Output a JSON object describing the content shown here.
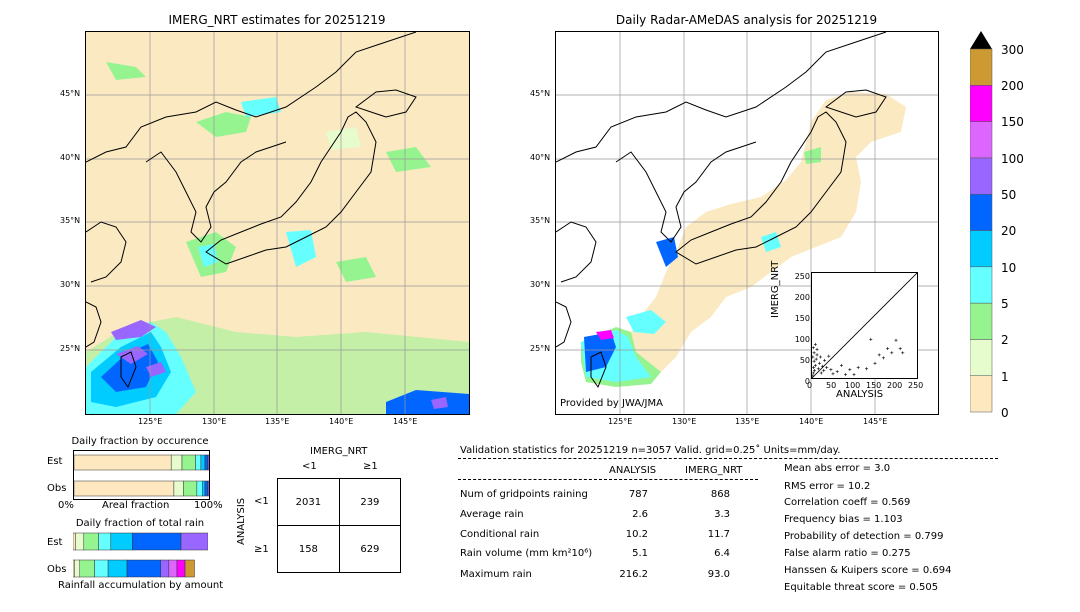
{
  "left_map": {
    "title": "IMERG_NRT estimates for 20251219",
    "lat_ticks": [
      "45°N",
      "40°N",
      "35°N",
      "30°N",
      "25°N"
    ],
    "lon_ticks": [
      "125°E",
      "130°E",
      "135°E",
      "140°E",
      "145°E"
    ]
  },
  "right_map": {
    "title": "Daily Radar-AMeDAS analysis for 20251219",
    "lat_ticks": [
      "45°N",
      "40°N",
      "35°N",
      "30°N",
      "25°N"
    ],
    "lon_ticks": [
      "125°E",
      "130°E",
      "135°E",
      "140°E",
      "145°E"
    ],
    "credit": "Provided by JWA/JMA"
  },
  "colorbar": {
    "labels": [
      "0",
      "1",
      "2",
      "5",
      "10",
      "20",
      "50",
      "100",
      "150",
      "200",
      "300"
    ],
    "colors": [
      "#fde8c0",
      "#e6fccc",
      "#96f490",
      "#66ffff",
      "#00ccff",
      "#0066ff",
      "#9966ff",
      "#dd66ff",
      "#ff00ff",
      "#cc9933"
    ]
  },
  "scatter": {
    "ylabel": "IMERG_NRT",
    "xlabel": "ANALYSIS",
    "ticks": [
      "0",
      "50",
      "100",
      "150",
      "200",
      "250"
    ]
  },
  "occurrence": {
    "title": "Daily fraction by occurence",
    "row_labels": [
      "Est",
      "Obs"
    ],
    "axis_left": "0%",
    "axis_mid": "Areal fraction",
    "axis_right": "100%"
  },
  "total_rain": {
    "title": "Daily fraction of total rain",
    "row_labels": [
      "Est",
      "Obs"
    ],
    "axis_label": "Rainfall accumulation by amount"
  },
  "contingency": {
    "col_title": "IMERG_NRT",
    "col_labels": [
      "<1",
      "≥1"
    ],
    "row_title": "ANALYSIS",
    "row_labels": [
      "<1",
      "≥1"
    ],
    "cells": [
      [
        "2031",
        "239"
      ],
      [
        "158",
        "629"
      ]
    ]
  },
  "validation": {
    "header": "Validation statistics for 20251219  n=3057 Valid. grid=0.25˚ Units=mm/day.",
    "col_analysis": "ANALYSIS",
    "col_imerg": "IMERG_NRT",
    "rows": [
      {
        "label": "Num of gridpoints raining",
        "analysis": "787",
        "imerg": "868"
      },
      {
        "label": "Average rain",
        "analysis": "2.6",
        "imerg": "3.3"
      },
      {
        "label": "Conditional rain",
        "analysis": "10.2",
        "imerg": "11.7"
      },
      {
        "label": "Rain volume (mm km²10⁶)",
        "analysis": "5.1",
        "imerg": "6.4"
      },
      {
        "label": "Maximum rain",
        "analysis": "216.2",
        "imerg": "93.0"
      }
    ],
    "scores": [
      "Mean abs error =    3.0",
      "RMS error =   10.2",
      "Correlation coeff =  0.569",
      "Frequency bias =  1.103",
      "Probability of detection =  0.799",
      "False alarm ratio =  0.275",
      "Hanssen & Kuipers score =  0.694",
      "Equitable threat score =  0.505"
    ]
  },
  "chart_data": [
    {
      "type": "scatter",
      "title": "",
      "xlabel": "ANALYSIS",
      "ylabel": "IMERG_NRT",
      "xlim": [
        0,
        250
      ],
      "ylim": [
        0,
        250
      ],
      "points": [
        [
          2,
          5
        ],
        [
          3,
          12
        ],
        [
          4,
          25
        ],
        [
          5,
          40
        ],
        [
          6,
          18
        ],
        [
          8,
          30
        ],
        [
          10,
          45
        ],
        [
          12,
          55
        ],
        [
          15,
          22
        ],
        [
          18,
          35
        ],
        [
          20,
          50
        ],
        [
          22,
          12
        ],
        [
          25,
          28
        ],
        [
          28,
          18
        ],
        [
          30,
          42
        ],
        [
          35,
          25
        ],
        [
          40,
          52
        ],
        [
          45,
          20
        ],
        [
          50,
          10
        ],
        [
          60,
          15
        ],
        [
          70,
          30
        ],
        [
          80,
          8
        ],
        [
          90,
          20
        ],
        [
          100,
          8
        ],
        [
          110,
          25
        ],
        [
          130,
          22
        ],
        [
          140,
          92
        ],
        [
          150,
          35
        ],
        [
          160,
          55
        ],
        [
          170,
          48
        ],
        [
          180,
          70
        ],
        [
          190,
          60
        ],
        [
          200,
          90
        ],
        [
          210,
          70
        ],
        [
          216,
          60
        ],
        [
          5,
          60
        ],
        [
          8,
          80
        ],
        [
          3,
          72
        ],
        [
          12,
          68
        ],
        [
          2,
          50
        ]
      ]
    },
    {
      "type": "bar",
      "title": "Daily fraction by occurence",
      "categories": [
        "Est",
        "Obs"
      ],
      "xlabel": "Areal fraction",
      "series": [
        {
          "values": [
            0.72,
            0.74
          ]
        },
        {
          "values": [
            0.08,
            0.07
          ]
        },
        {
          "values": [
            0.1,
            0.1
          ]
        },
        {
          "values": [
            0.04,
            0.04
          ]
        },
        {
          "values": [
            0.03,
            0.02
          ]
        },
        {
          "values": [
            0.02,
            0.02
          ]
        },
        {
          "values": [
            0.01,
            0.01
          ]
        }
      ]
    },
    {
      "type": "bar",
      "title": "Daily fraction of total rain",
      "categories": [
        "Est",
        "Obs"
      ],
      "xlabel": "Rainfall accumulation by amount",
      "series": [
        {
          "values": [
            0.02,
            0.01
          ]
        },
        {
          "values": [
            0.06,
            0.04
          ]
        },
        {
          "values": [
            0.11,
            0.11
          ]
        },
        {
          "values": [
            0.09,
            0.1
          ]
        },
        {
          "values": [
            0.16,
            0.14
          ]
        },
        {
          "values": [
            0.36,
            0.25
          ]
        },
        {
          "values": [
            0.2,
            0.06
          ]
        },
        {
          "values": [
            0.0,
            0.06
          ]
        },
        {
          "values": [
            0.0,
            0.06
          ]
        },
        {
          "values": [
            0.0,
            0.07
          ]
        }
      ]
    }
  ]
}
